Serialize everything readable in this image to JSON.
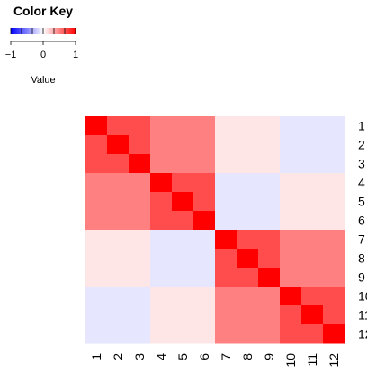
{
  "chart_data": {
    "type": "heatmap",
    "row_labels": [
      "1",
      "2",
      "3",
      "4",
      "5",
      "6",
      "7",
      "8",
      "9",
      "10",
      "11",
      "12"
    ],
    "col_labels": [
      "1",
      "2",
      "3",
      "4",
      "5",
      "6",
      "7",
      "8",
      "9",
      "10",
      "11",
      "12"
    ],
    "matrix": [
      [
        1.0,
        0.7,
        0.7,
        0.5,
        0.5,
        0.5,
        0.1,
        0.1,
        0.1,
        -0.1,
        -0.1,
        -0.1
      ],
      [
        0.7,
        1.0,
        0.7,
        0.5,
        0.5,
        0.5,
        0.1,
        0.1,
        0.1,
        -0.1,
        -0.1,
        -0.1
      ],
      [
        0.7,
        0.7,
        1.0,
        0.5,
        0.5,
        0.5,
        0.1,
        0.1,
        0.1,
        -0.1,
        -0.1,
        -0.1
      ],
      [
        0.5,
        0.5,
        0.5,
        1.0,
        0.7,
        0.7,
        -0.1,
        -0.1,
        -0.1,
        0.1,
        0.1,
        0.1
      ],
      [
        0.5,
        0.5,
        0.5,
        0.7,
        1.0,
        0.7,
        -0.1,
        -0.1,
        -0.1,
        0.1,
        0.1,
        0.1
      ],
      [
        0.5,
        0.5,
        0.5,
        0.7,
        0.7,
        1.0,
        -0.1,
        -0.1,
        -0.1,
        0.1,
        0.1,
        0.1
      ],
      [
        0.1,
        0.1,
        0.1,
        -0.1,
        -0.1,
        -0.1,
        1.0,
        0.7,
        0.7,
        0.5,
        0.5,
        0.5
      ],
      [
        0.1,
        0.1,
        0.1,
        -0.1,
        -0.1,
        -0.1,
        0.7,
        1.0,
        0.7,
        0.5,
        0.5,
        0.5
      ],
      [
        0.1,
        0.1,
        0.1,
        -0.1,
        -0.1,
        -0.1,
        0.7,
        0.7,
        1.0,
        0.5,
        0.5,
        0.5
      ],
      [
        -0.1,
        -0.1,
        -0.1,
        0.1,
        0.1,
        0.1,
        0.5,
        0.5,
        0.5,
        1.0,
        0.7,
        0.7
      ],
      [
        -0.1,
        -0.1,
        -0.1,
        0.1,
        0.1,
        0.1,
        0.5,
        0.5,
        0.5,
        0.7,
        1.0,
        0.7
      ],
      [
        -0.1,
        -0.1,
        -0.1,
        0.1,
        0.1,
        0.1,
        0.5,
        0.5,
        0.5,
        0.7,
        0.7,
        1.0
      ]
    ],
    "value_range": [
      -1,
      1
    ],
    "color_low": "#0000ff",
    "color_mid": "#ffffff",
    "color_high": "#ff0000",
    "color_key": {
      "title": "Color Key",
      "ticks": [
        -1,
        0,
        1
      ],
      "tick_labels": [
        "−1",
        "0",
        "1"
      ],
      "axis_label": "Value"
    }
  }
}
